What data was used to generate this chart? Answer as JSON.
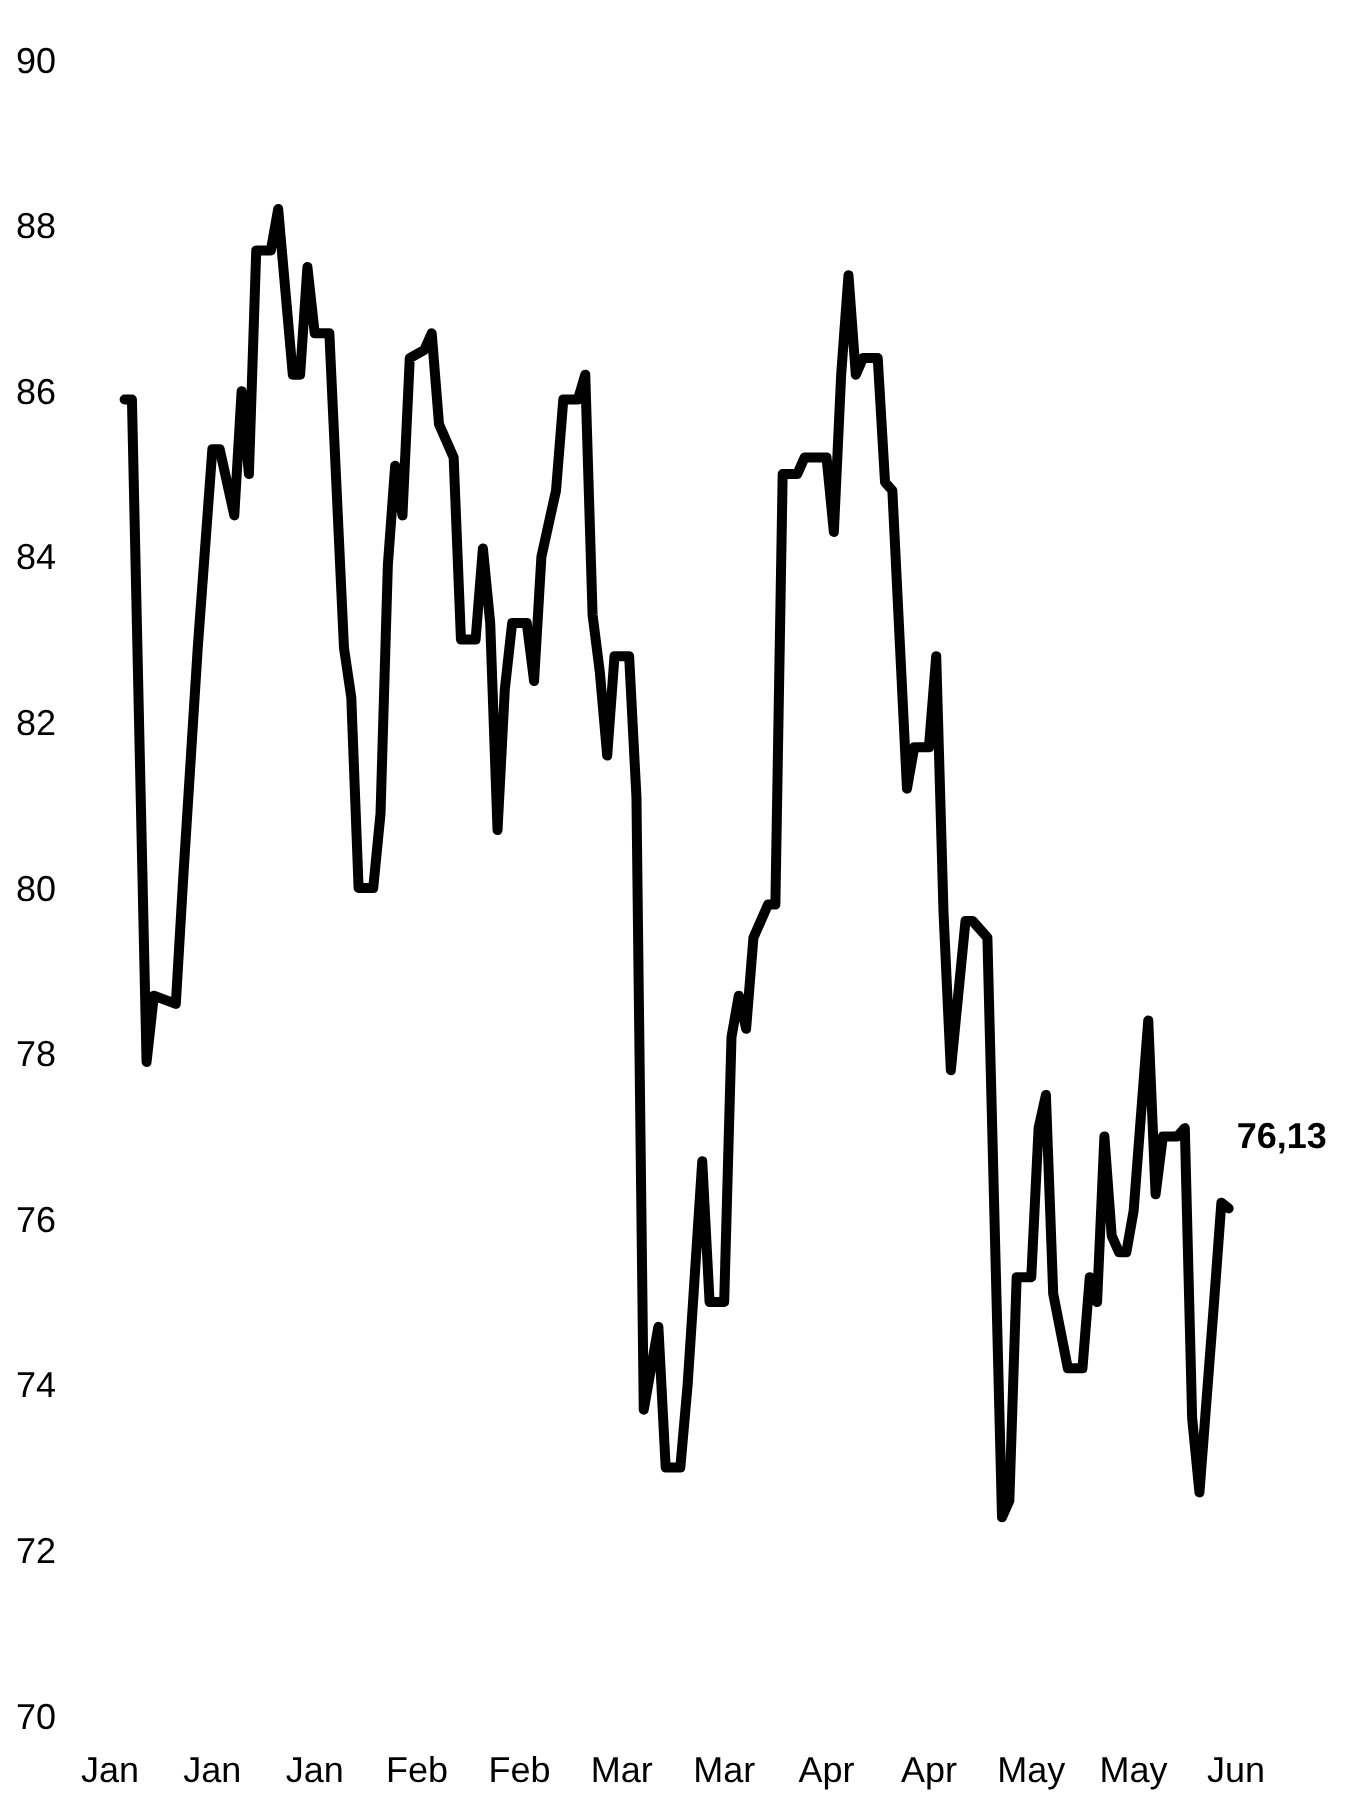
{
  "chart_data": {
    "type": "line",
    "xlim": [
      "--01-01",
      "--06-04"
    ],
    "ylim": [
      70,
      90
    ],
    "xticks": [
      {
        "value": "--01-01",
        "label": "Jan"
      },
      {
        "value": "--01-15",
        "label": "Jan"
      },
      {
        "value": "--01-29",
        "label": "Jan"
      },
      {
        "value": "--02-12",
        "label": "Feb"
      },
      {
        "value": "--02-26",
        "label": "Feb"
      },
      {
        "value": "--03-12",
        "label": "Mar"
      },
      {
        "value": "--03-26",
        "label": "Mar"
      },
      {
        "value": "--04-09",
        "label": "Apr"
      },
      {
        "value": "--04-23",
        "label": "Apr"
      },
      {
        "value": "--05-07",
        "label": "May"
      },
      {
        "value": "--05-21",
        "label": "May"
      },
      {
        "value": "--06-04",
        "label": "Jun"
      }
    ],
    "yticks": [
      70,
      72,
      74,
      76,
      78,
      80,
      82,
      84,
      86,
      88,
      90
    ],
    "grid": false,
    "marker": "none",
    "line_style": "solid",
    "x": [
      "--01-03",
      "--01-04",
      "--01-06",
      "--01-07",
      "--01-10",
      "--01-11",
      "--01-13",
      "--01-15",
      "--01-16",
      "--01-18",
      "--01-19",
      "--01-20",
      "--01-21",
      "--01-23",
      "--01-24",
      "--01-26",
      "--01-27",
      "--01-28",
      "--01-29",
      "--01-31",
      "--02-01",
      "--02-02",
      "--02-03",
      "--02-04",
      "--02-06",
      "--02-07",
      "--02-08",
      "--02-09",
      "--02-10",
      "--02-11",
      "--02-13",
      "--02-14",
      "--02-15",
      "--02-17",
      "--02-18",
      "--02-20",
      "--02-21",
      "--02-22",
      "--02-23",
      "--02-24",
      "--02-25",
      "--02-27",
      "--02-28",
      "--03-01",
      "--03-03",
      "--03-04",
      "--03-06",
      "--03-07",
      "--03-08",
      "--03-09",
      "--03-10",
      "--03-11",
      "--03-13",
      "--03-14",
      "--03-15",
      "--03-17",
      "--03-18",
      "--03-20",
      "--03-21",
      "--03-23",
      "--03-24",
      "--03-26",
      "--03-27",
      "--03-28",
      "--03-29",
      "--03-30",
      "--04-01",
      "--04-02",
      "--04-03",
      "--04-05",
      "--04-06",
      "--04-09",
      "--04-10",
      "--04-11",
      "--04-12",
      "--04-13",
      "--04-14",
      "--04-16",
      "--04-17",
      "--04-18",
      "--04-20",
      "--04-21",
      "--04-23",
      "--04-24",
      "--04-25",
      "--04-26",
      "--04-28",
      "--04-29",
      "--05-01",
      "--05-03",
      "--05-04",
      "--05-05",
      "--05-07",
      "--05-08",
      "--05-09",
      "--05-10",
      "--05-12",
      "--05-14",
      "--05-15",
      "--05-16",
      "--05-17",
      "--05-18",
      "--05-19",
      "--05-20",
      "--05-21",
      "--05-23",
      "--05-24",
      "--05-25",
      "--05-27",
      "--05-28",
      "--05-29",
      "--05-30",
      "--06-01",
      "--06-02",
      "--06-03"
    ],
    "series": [
      {
        "color": "#000000",
        "values": [
          85.9,
          85.9,
          77.9,
          78.7,
          78.6,
          80.1,
          82.9,
          85.3,
          85.3,
          84.5,
          86.0,
          85.0,
          87.7,
          87.7,
          88.2,
          86.2,
          86.2,
          87.5,
          86.7,
          86.7,
          84.8,
          82.9,
          82.3,
          80.0,
          80.0,
          80.9,
          83.9,
          85.1,
          84.5,
          86.4,
          86.5,
          86.7,
          85.6,
          85.2,
          83.0,
          83.0,
          84.1,
          83.2,
          80.7,
          82.4,
          83.2,
          83.2,
          82.5,
          84.0,
          84.8,
          85.9,
          85.9,
          86.2,
          83.3,
          82.6,
          81.6,
          82.8,
          82.8,
          81.1,
          73.7,
          74.7,
          73.0,
          73.0,
          74.0,
          76.7,
          75.0,
          75.0,
          78.2,
          78.7,
          78.3,
          79.4,
          79.8,
          79.8,
          85.0,
          85.0,
          85.2,
          85.2,
          84.3,
          86.2,
          87.4,
          86.2,
          86.4,
          86.4,
          84.9,
          84.8,
          81.2,
          81.7,
          81.7,
          82.8,
          79.7,
          77.8,
          79.6,
          79.6,
          79.4,
          72.4,
          72.6,
          75.3,
          75.3,
          77.1,
          77.5,
          75.1,
          74.2,
          74.2,
          75.3,
          75.0,
          77.0,
          75.8,
          75.6,
          75.6,
          76.1,
          78.4,
          76.3,
          77.0,
          77.0,
          77.1,
          73.6,
          72.7,
          75.0,
          76.2,
          76.13
        ]
      }
    ],
    "annotations": [
      {
        "text": "76,13",
        "x": "--06-03",
        "y": 76.13
      }
    ]
  }
}
